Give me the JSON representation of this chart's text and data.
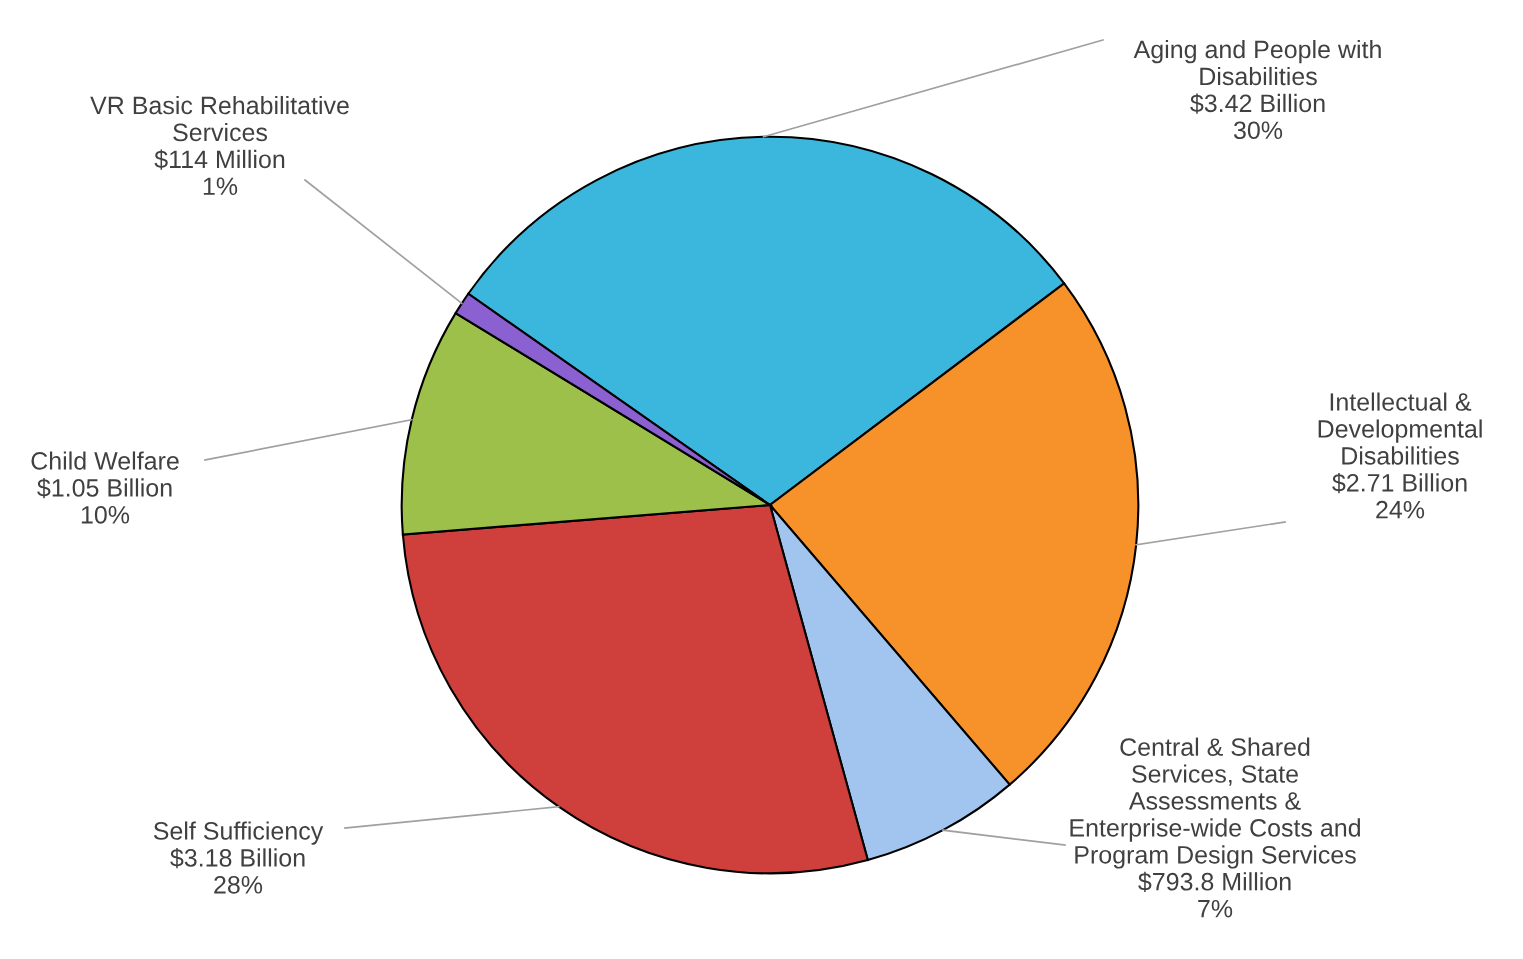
{
  "chart_data": {
    "type": "pie",
    "categories": [
      "Aging and People with\nDisabilities",
      "Intellectual &\nDevelopmental\nDisabilities",
      "Central & Shared\nServices, State\nAssessments &\nEnterprise-wide Costs and\nProgram Design Services",
      "Self Sufficiency",
      "Child Welfare",
      "VR Basic Rehabilitative\nServices"
    ],
    "values": [
      30,
      24,
      7,
      28,
      10,
      1
    ],
    "value_labels": [
      "$3.42 Billion\n30%",
      "$2.71 Billion\n24%",
      "$793.8 Million\n7%",
      "$3.18 Billion\n28%",
      "$1.05 Billion\n10%",
      "$114 Million\n1%"
    ],
    "colors": [
      "#3bb6dc",
      "#f7922b",
      "#a2c5f0",
      "#cf403d",
      "#9cc04a",
      "#8b60d0"
    ]
  }
}
